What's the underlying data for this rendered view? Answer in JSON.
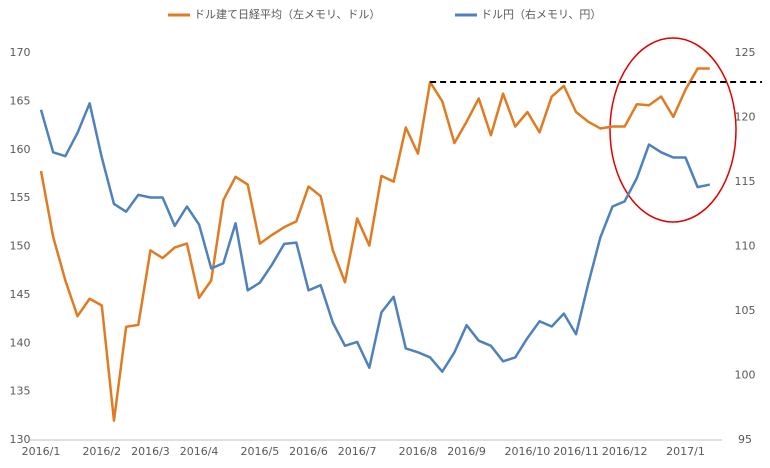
{
  "chart_data": {
    "type": "line",
    "categories": [
      "2016/1",
      null,
      null,
      null,
      null,
      "2016/2",
      null,
      null,
      null,
      "2016/3",
      null,
      null,
      null,
      "2016/4",
      null,
      null,
      null,
      null,
      "2016/5",
      null,
      null,
      null,
      "2016/6",
      null,
      null,
      null,
      "2016/7",
      null,
      null,
      null,
      null,
      "2016/8",
      null,
      null,
      null,
      "2016/9",
      null,
      null,
      null,
      null,
      "2016/10",
      null,
      null,
      null,
      "2016/11",
      null,
      null,
      null,
      "2016/12",
      null,
      null,
      null,
      null,
      "2017/1",
      null,
      null
    ],
    "series": [
      {
        "name": "ドル建て日経平均（左メモリ、ドル）",
        "color": "#e07b21",
        "axis": "y",
        "values": [
          157.8,
          151,
          146.5,
          142.8,
          144.6,
          143.9,
          132,
          141.7,
          141.9,
          149.6,
          148.8,
          149.9,
          150.3,
          144.7,
          146.5,
          154.8,
          157.2,
          156.4,
          150.3,
          151.2,
          152.0,
          152.6,
          156.2,
          155.2,
          149.6,
          146.3,
          152.9,
          150.1,
          157.3,
          156.7,
          162.3,
          159.6,
          167,
          165.0,
          160.7,
          162.9,
          165.3,
          161.5,
          165.8,
          162.4,
          163.9,
          161.8,
          165.5,
          166.6,
          163.9,
          162.9,
          162.2,
          162.4,
          162.4,
          164.7,
          164.6,
          165.5,
          163.4,
          166.2,
          168.4,
          168.4
        ]
      },
      {
        "name": "ドル円（右メモリ、円）",
        "color": "#4f81bd",
        "axis": "y2",
        "values": [
          120.6,
          117.3,
          117.0,
          118.8,
          121.1,
          116.9,
          113.3,
          112.7,
          114.0,
          113.8,
          113.8,
          111.6,
          113.1,
          111.7,
          108.3,
          108.7,
          111.8,
          106.6,
          107.2,
          108.6,
          110.2,
          110.3,
          106.6,
          107.0,
          104.1,
          102.3,
          102.6,
          100.6,
          104.9,
          106.1,
          102.1,
          101.8,
          101.4,
          100.3,
          101.8,
          103.9,
          102.7,
          102.3,
          101.1,
          101.4,
          102.9,
          104.2,
          103.8,
          104.8,
          103.2,
          107.1,
          110.7,
          113.1,
          113.5,
          115.3,
          117.9,
          117.3,
          116.9,
          116.9,
          114.6,
          114.8
        ]
      }
    ],
    "ylim": [
      130,
      170
    ],
    "yticks": [
      130,
      135,
      140,
      145,
      150,
      155,
      160,
      165,
      170
    ],
    "y2lim": [
      95,
      125
    ],
    "y2ticks": [
      95,
      100,
      105,
      110,
      115,
      120,
      125
    ],
    "reference_line": 167
  }
}
